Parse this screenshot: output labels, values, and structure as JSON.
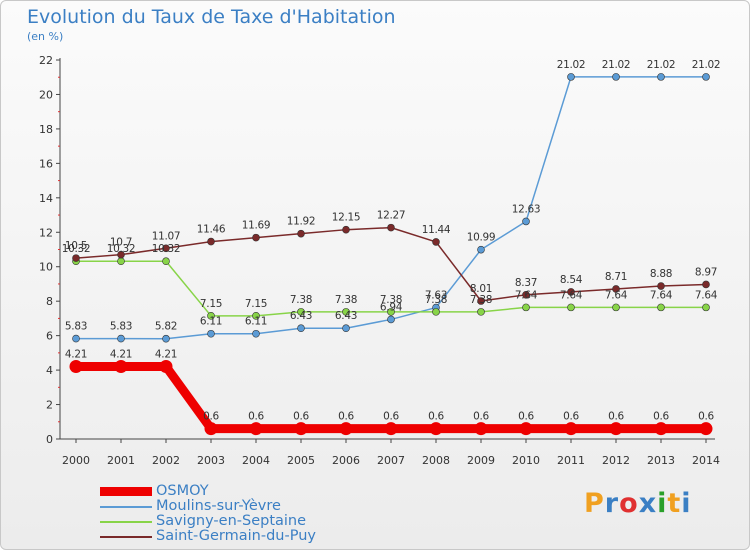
{
  "chart_data": {
    "type": "line",
    "title": "Evolution du Taux de Taxe d'Habitation",
    "subtitle": "(en %)",
    "x": [
      "2000",
      "2001",
      "2002",
      "2003",
      "2004",
      "2005",
      "2006",
      "2007",
      "2008",
      "2009",
      "2010",
      "2011",
      "2012",
      "2013",
      "2014"
    ],
    "ylim": [
      0,
      22
    ],
    "yticks": [
      0,
      2,
      4,
      6,
      8,
      10,
      12,
      14,
      16,
      18,
      20,
      22
    ],
    "grid": false,
    "legend_placement": "bottom-left",
    "series": [
      {
        "name": "OSMOY",
        "color": "#ee0000",
        "values": [
          4.21,
          4.21,
          4.21,
          0.6,
          0.6,
          0.6,
          0.6,
          0.6,
          0.6,
          0.6,
          0.6,
          0.6,
          0.6,
          0.6,
          0.6
        ],
        "labels": [
          "4.21",
          "4.21",
          "4.21",
          "0.6",
          "0.6",
          "0.6",
          "0.6",
          "0.6",
          "0.6",
          "0.6",
          "0.6",
          "0.6",
          "0.6",
          "0.6",
          "0.6"
        ]
      },
      {
        "name": "Moulins-sur-Yèvre",
        "color": "#5b9bd5",
        "values": [
          5.83,
          5.83,
          5.82,
          6.11,
          6.11,
          6.43,
          6.43,
          6.94,
          7.63,
          10.99,
          12.63,
          21.02,
          21.02,
          21.02,
          21.02
        ],
        "labels": [
          "5.83",
          "5.83",
          "5.82",
          "6.11",
          "6.11",
          "6.43",
          "6.43",
          "6.94",
          "7.63",
          "10.99",
          "12.63",
          "21.02",
          "21.02",
          "21.02",
          "21.02"
        ]
      },
      {
        "name": "Savigny-en-Septaine",
        "color": "#88d448",
        "values": [
          10.32,
          10.32,
          10.32,
          7.15,
          7.15,
          7.38,
          7.38,
          7.38,
          7.38,
          7.38,
          7.64,
          7.64,
          7.64,
          7.64,
          7.64
        ],
        "labels": [
          "10.32",
          "10.32",
          "10.32",
          "7.15",
          "7.15",
          "7.38",
          "7.38",
          "7.38",
          "7.38",
          "7.38",
          "7.64",
          "7.64",
          "7.64",
          "7.64",
          "7.64"
        ]
      },
      {
        "name": "Saint-Germain-du-Puy",
        "color": "#7a2a2a",
        "values": [
          10.5,
          10.7,
          11.07,
          11.46,
          11.69,
          11.92,
          12.15,
          12.27,
          11.44,
          8.01,
          8.37,
          8.54,
          8.71,
          8.88,
          8.97
        ],
        "labels": [
          "10.5",
          "10.7",
          "11.07",
          "11.46",
          "11.69",
          "11.92",
          "12.15",
          "12.27",
          "11.44",
          "8.01",
          "8.37",
          "8.54",
          "8.71",
          "8.88",
          "8.97"
        ]
      }
    ]
  },
  "logo": {
    "text": "Proxiti",
    "colors": [
      "#f0a020",
      "#3a7fc4",
      "#e03030",
      "#3a7fc4",
      "#2aa02a",
      "#f0a020",
      "#3a7fc4"
    ]
  }
}
